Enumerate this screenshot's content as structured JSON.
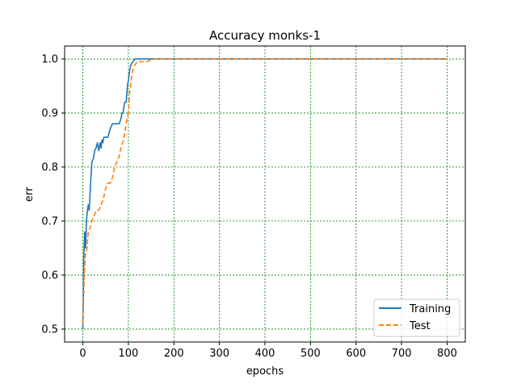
{
  "chart_data": {
    "type": "line",
    "title": "Accuracy monks-1",
    "xlabel": "epochs",
    "ylabel": "err",
    "xlim": [
      -40,
      840
    ],
    "ylim": [
      0.476,
      1.024
    ],
    "xticks": [
      0,
      100,
      200,
      300,
      400,
      500,
      600,
      700,
      800
    ],
    "yticks": [
      0.5,
      0.6,
      0.7,
      0.8,
      0.9,
      1.0
    ],
    "ytick_labels": [
      "0.5",
      "0.6",
      "0.7",
      "0.8",
      "0.9",
      "1.0"
    ],
    "grid": true,
    "grid_color": "#008000",
    "legend_position": "lower-right",
    "series": [
      {
        "name": "Training",
        "color": "#1f77b4",
        "style": "solid",
        "x": [
          0,
          2,
          4,
          6,
          8,
          10,
          12,
          14,
          17,
          20,
          23,
          26,
          29,
          32,
          35,
          38,
          40,
          42,
          44,
          46,
          50,
          55,
          60,
          65,
          70,
          75,
          80,
          84,
          86,
          88,
          90,
          92,
          95,
          98,
          100,
          103,
          106,
          110,
          115,
          120,
          140,
          160,
          200,
          400,
          600,
          800
        ],
        "y": [
          0.5,
          0.63,
          0.68,
          0.65,
          0.7,
          0.72,
          0.73,
          0.72,
          0.77,
          0.81,
          0.815,
          0.83,
          0.835,
          0.845,
          0.83,
          0.845,
          0.835,
          0.85,
          0.845,
          0.855,
          0.855,
          0.855,
          0.87,
          0.88,
          0.88,
          0.88,
          0.88,
          0.89,
          0.9,
          0.9,
          0.91,
          0.92,
          0.92,
          0.95,
          0.96,
          0.98,
          0.99,
          0.995,
          1.0,
          1.0,
          1.0,
          1.0,
          1.0,
          1.0,
          1.0,
          1.0
        ]
      },
      {
        "name": "Test",
        "color": "#ff7f0e",
        "style": "dashed",
        "x": [
          0,
          3,
          6,
          9,
          12,
          15,
          20,
          25,
          30,
          35,
          40,
          45,
          50,
          55,
          60,
          65,
          70,
          75,
          80,
          85,
          90,
          95,
          100,
          103,
          106,
          110,
          115,
          120,
          130,
          140,
          150,
          160,
          200,
          400,
          600,
          800
        ],
        "y": [
          0.51,
          0.6,
          0.64,
          0.65,
          0.68,
          0.685,
          0.7,
          0.71,
          0.72,
          0.72,
          0.73,
          0.74,
          0.76,
          0.77,
          0.77,
          0.78,
          0.8,
          0.81,
          0.82,
          0.84,
          0.85,
          0.88,
          0.9,
          0.94,
          0.96,
          0.98,
          0.99,
          0.995,
          0.995,
          0.995,
          0.998,
          1.0,
          1.0,
          1.0,
          1.0,
          1.0
        ]
      }
    ]
  }
}
